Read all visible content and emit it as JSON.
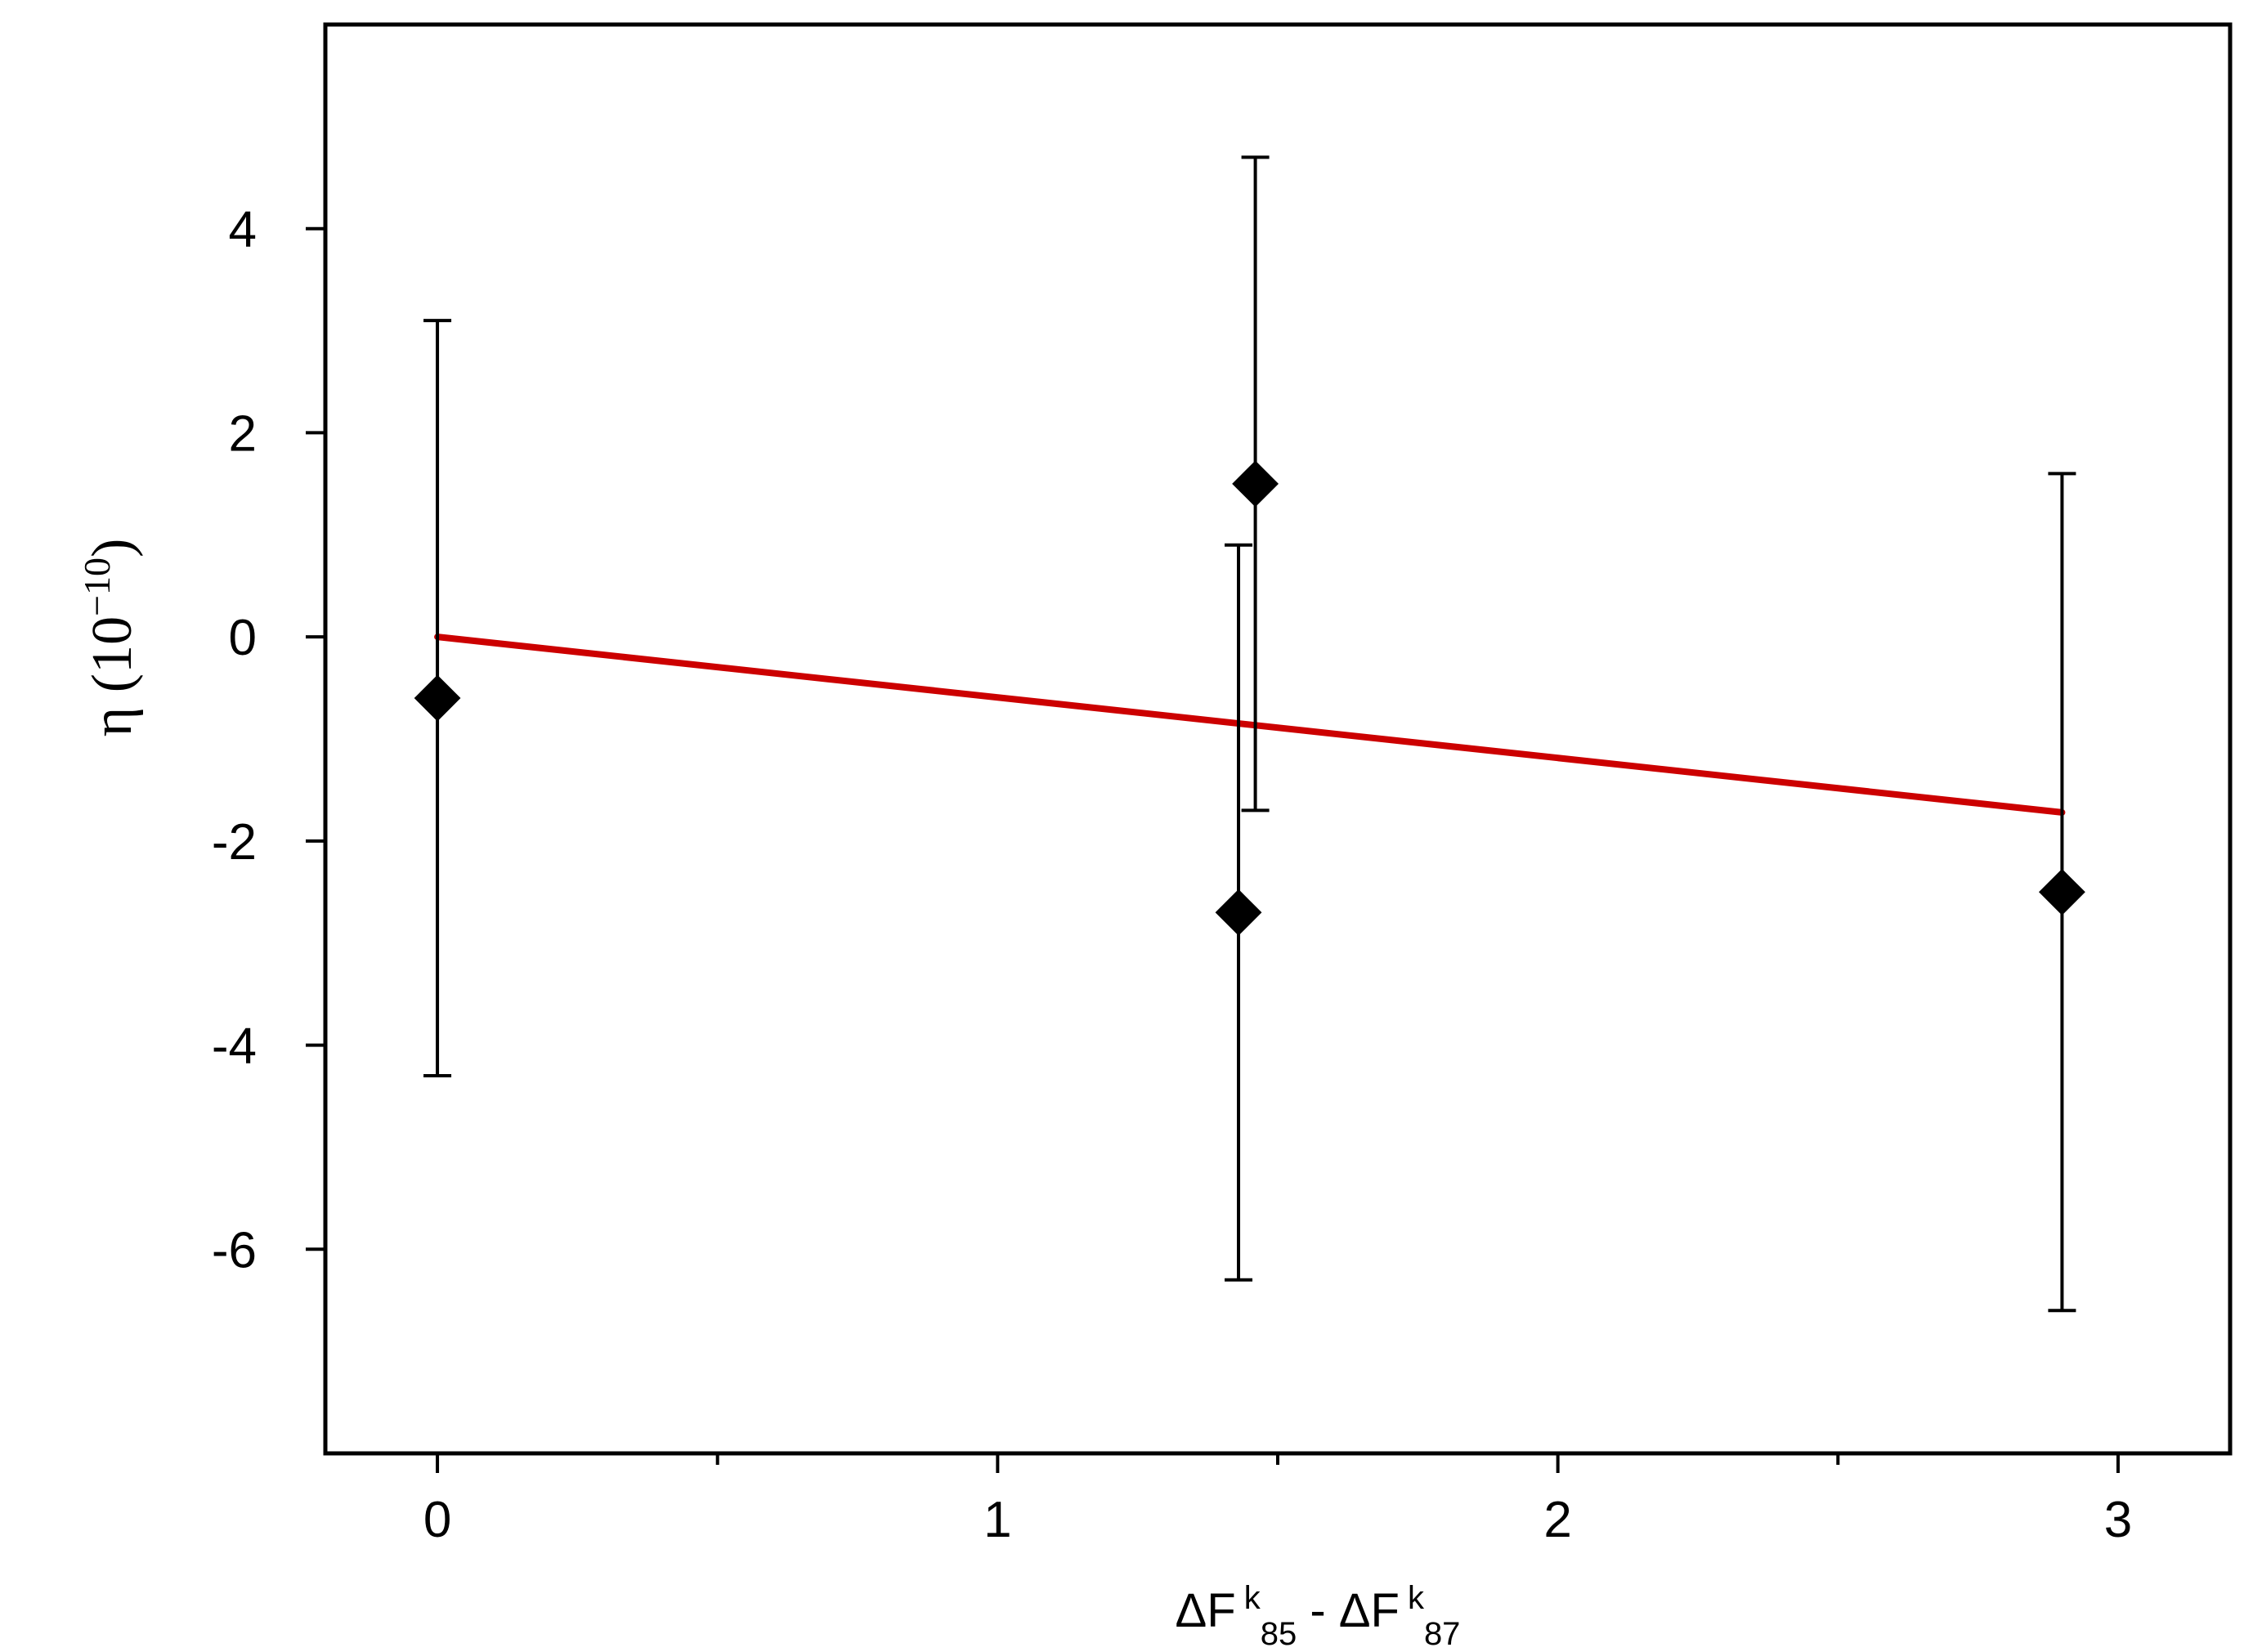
{
  "chart_data": {
    "type": "scatter",
    "title": "",
    "xlabel": {
      "parts": [
        "ΔF",
        "k",
        "85",
        " - ΔF",
        "k",
        "87"
      ]
    },
    "ylabel": {
      "base": "η (10",
      "exponent": "−10",
      "close": ")"
    },
    "xlim": [
      -0.2,
      3.2
    ],
    "ylim": [
      -8,
      6
    ],
    "xticks": [
      {
        "value": 0,
        "label": "0"
      },
      {
        "value": 0.5,
        "label": ""
      },
      {
        "value": 1,
        "label": "1"
      },
      {
        "value": 1.5,
        "label": ""
      },
      {
        "value": 2,
        "label": "2"
      },
      {
        "value": 2.5,
        "label": ""
      },
      {
        "value": 3,
        "label": "3"
      }
    ],
    "yticks": [
      {
        "value": -6,
        "label": "-6"
      },
      {
        "value": -4,
        "label": "-4"
      },
      {
        "value": -2,
        "label": "-2"
      },
      {
        "value": 0,
        "label": "0"
      },
      {
        "value": 2,
        "label": "2"
      },
      {
        "value": 4,
        "label": "4"
      }
    ],
    "grid": false,
    "legend": "none",
    "series": [
      {
        "marker": "diamond",
        "color": "#000000",
        "points": [
          {
            "x": 0.0,
            "y": -0.6,
            "err_low": -4.3,
            "err_high": 3.1
          },
          {
            "x": 1.43,
            "y": -2.7,
            "err_low": -6.3,
            "err_high": 0.9
          },
          {
            "x": 1.46,
            "y": 1.5,
            "err_low": -1.7,
            "err_high": 4.7
          },
          {
            "x": 2.9,
            "y": -2.5,
            "err_low": -6.6,
            "err_high": 1.6
          }
        ]
      }
    ],
    "fit_line": {
      "color": "#cc0000",
      "points": [
        {
          "x": 0.0,
          "y": 0.0
        },
        {
          "x": 2.9,
          "y": -1.72
        }
      ]
    }
  }
}
